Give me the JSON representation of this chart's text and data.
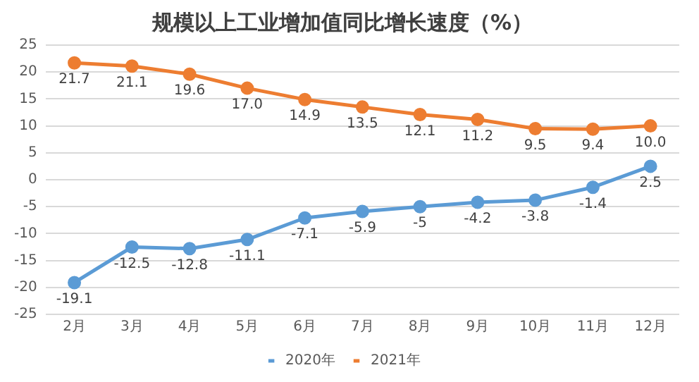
{
  "chart_data": {
    "type": "line",
    "title": "规模以上工业增加值同比增长速度（%）",
    "categories": [
      "2月",
      "3月",
      "4月",
      "5月",
      "6月",
      "7月",
      "8月",
      "9月",
      "10月",
      "11月",
      "12月"
    ],
    "series": [
      {
        "name": "2020年",
        "color": "#5b9bd5",
        "values": [
          -19.1,
          -12.5,
          -12.8,
          -11.1,
          -7.1,
          -5.9,
          -5,
          -4.2,
          -3.8,
          -1.4,
          2.5
        ],
        "value_labels": [
          "-19.1",
          "-12.5",
          "-12.8",
          "-11.1",
          "-7.1",
          "-5.9",
          "-5",
          "-4.2",
          "-3.8",
          "-1.4",
          "2.5"
        ]
      },
      {
        "name": "2021年",
        "color": "#ed7d31",
        "values": [
          21.7,
          21.1,
          19.6,
          17.0,
          14.9,
          13.5,
          12.1,
          11.2,
          9.5,
          9.4,
          10.0
        ],
        "value_labels": [
          "21.7",
          "21.1",
          "19.6",
          "17.0",
          "14.9",
          "13.5",
          "12.1",
          "11.2",
          "9.5",
          "9.4",
          "10.0"
        ]
      }
    ],
    "ylim": [
      -25,
      25
    ],
    "yticks": [
      -25,
      -20,
      -15,
      -10,
      -5,
      0,
      5,
      10,
      15,
      20,
      25
    ],
    "grid": "y",
    "legend": "bottom",
    "marker": "circle",
    "line_style": "solid"
  }
}
